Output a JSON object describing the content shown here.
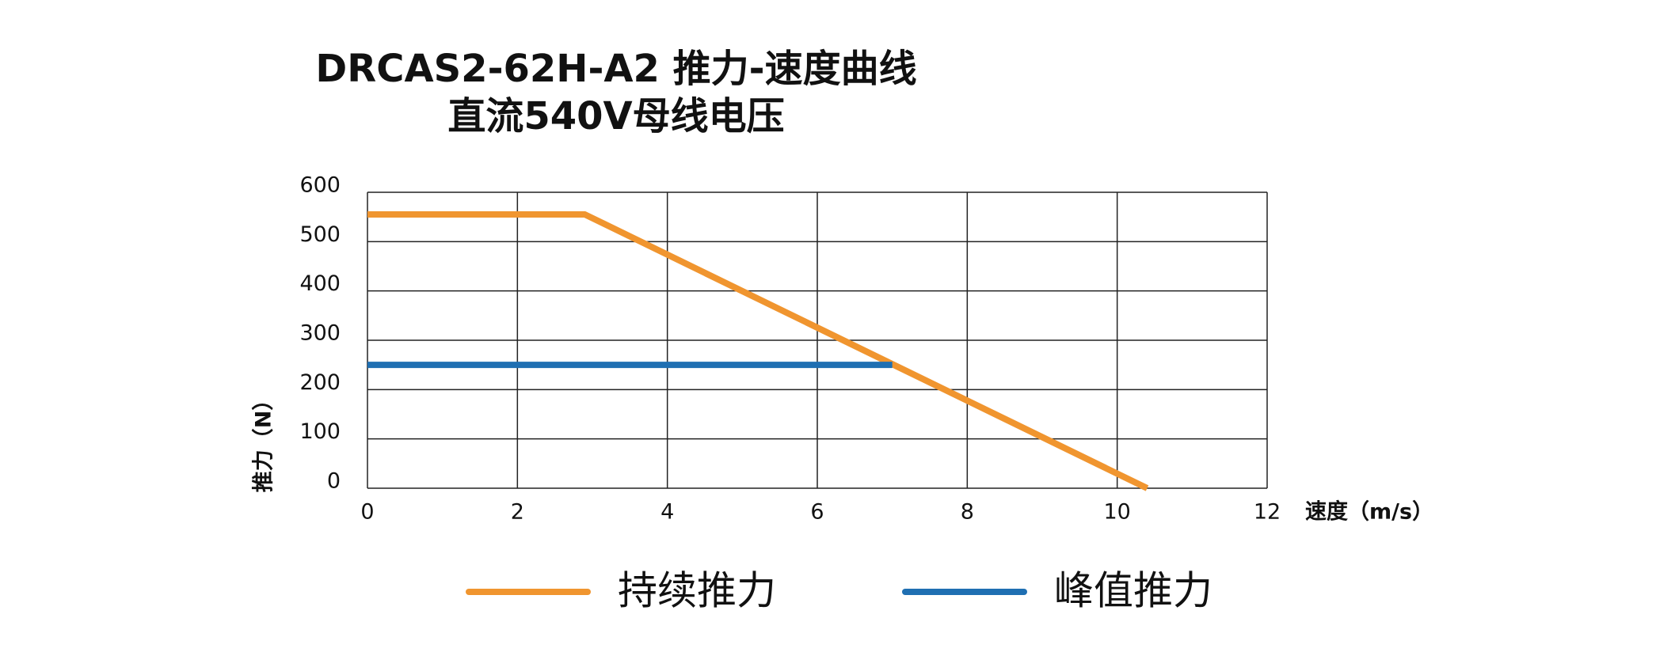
{
  "chart_data": {
    "type": "line",
    "title": "DRCAS2-62H-A2 推力-速度曲线",
    "subtitle": "直流540V母线电压",
    "x_label": "速度（m/s）",
    "y_label": "推力（N）",
    "series": [
      {
        "name": "持续推力",
        "color": "#f0952f",
        "x": [
          0,
          2.9,
          10.4
        ],
        "values": [
          555,
          555,
          0
        ]
      },
      {
        "name": "峰值推力",
        "color": "#1f6fb2",
        "x": [
          0,
          7
        ],
        "values": [
          250,
          250
        ]
      }
    ],
    "xlim": [
      0,
      12
    ],
    "xticks": [
      0,
      2,
      4,
      6,
      8,
      10,
      12
    ],
    "ylim": [
      0,
      600
    ],
    "yticks": [
      0,
      100,
      200,
      300,
      400,
      500,
      600
    ],
    "grid": true,
    "legend": "bottom"
  }
}
